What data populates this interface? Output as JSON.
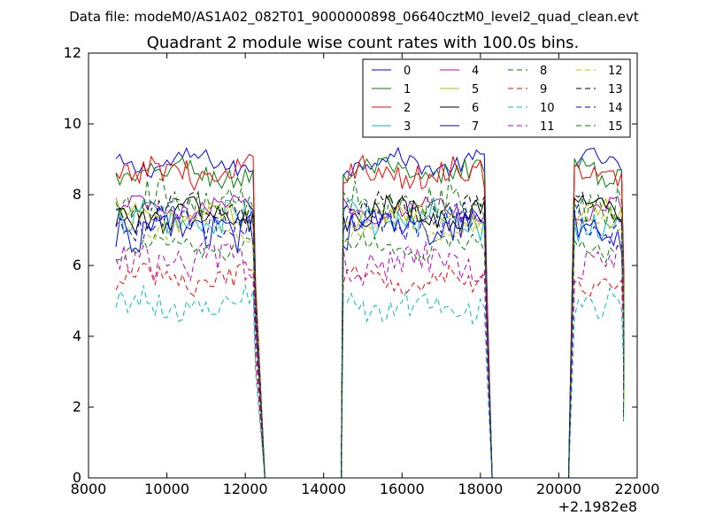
{
  "header_text": "Data file: modeM0/AS1A02_082T01_9000000898_06640cztM0_level2_quad_clean.evt",
  "chart_data": {
    "type": "line",
    "title": "Quadrant 2 module wise count rates with 100.0s bins.",
    "xlabel": "",
    "ylabel": "",
    "x_offset_label": "+2.1982e8",
    "xlim": [
      8000,
      22000
    ],
    "ylim": [
      0,
      12
    ],
    "x_ticks": [
      8000,
      10000,
      12000,
      14000,
      16000,
      18000,
      20000,
      22000
    ],
    "y_ticks": [
      0,
      2,
      4,
      6,
      8,
      10,
      12
    ],
    "grid": false,
    "legend_position": "top-right",
    "legend_columns": 4,
    "segments": [
      {
        "start": 8700,
        "end": 12200,
        "fall_end": 12500
      },
      {
        "start": 14500,
        "rise_start": 14450,
        "end": 18100,
        "fall_end": 18300
      },
      {
        "start": 20400,
        "rise_start": 20250,
        "end": 21600,
        "fall_end": 21650
      }
    ],
    "series": [
      {
        "name": "0",
        "color": "#0000ff",
        "style": "solid",
        "level": 8.9
      },
      {
        "name": "1",
        "color": "#008000",
        "style": "solid",
        "level": 8.6
      },
      {
        "name": "2",
        "color": "#ff0000",
        "style": "solid",
        "level": 8.6
      },
      {
        "name": "3",
        "color": "#00bfbf",
        "style": "solid",
        "level": 7.3
      },
      {
        "name": "4",
        "color": "#bf00bf",
        "style": "solid",
        "level": 7.6
      },
      {
        "name": "5",
        "color": "#bfbf00",
        "style": "solid",
        "level": 7.4
      },
      {
        "name": "6",
        "color": "#000000",
        "style": "solid",
        "level": 7.4
      },
      {
        "name": "7",
        "color": "#0000ff",
        "style": "solid",
        "level": 7.0
      },
      {
        "name": "8",
        "color": "#008000",
        "style": "dashed",
        "level": 6.5
      },
      {
        "name": "9",
        "color": "#ff0000",
        "style": "dashed",
        "level": 5.6
      },
      {
        "name": "10",
        "color": "#00bfbf",
        "style": "dashed",
        "level": 4.9
      },
      {
        "name": "11",
        "color": "#bf00bf",
        "style": "dashed",
        "level": 6.1
      },
      {
        "name": "12",
        "color": "#bfbf00",
        "style": "dashed",
        "level": 7.1
      },
      {
        "name": "13",
        "color": "#000000",
        "style": "dashed",
        "level": 7.6
      },
      {
        "name": "14",
        "color": "#0000ff",
        "style": "dashed",
        "level": 7.2
      },
      {
        "name": "15",
        "color": "#008000",
        "style": "dashed",
        "level": 7.8
      }
    ]
  }
}
